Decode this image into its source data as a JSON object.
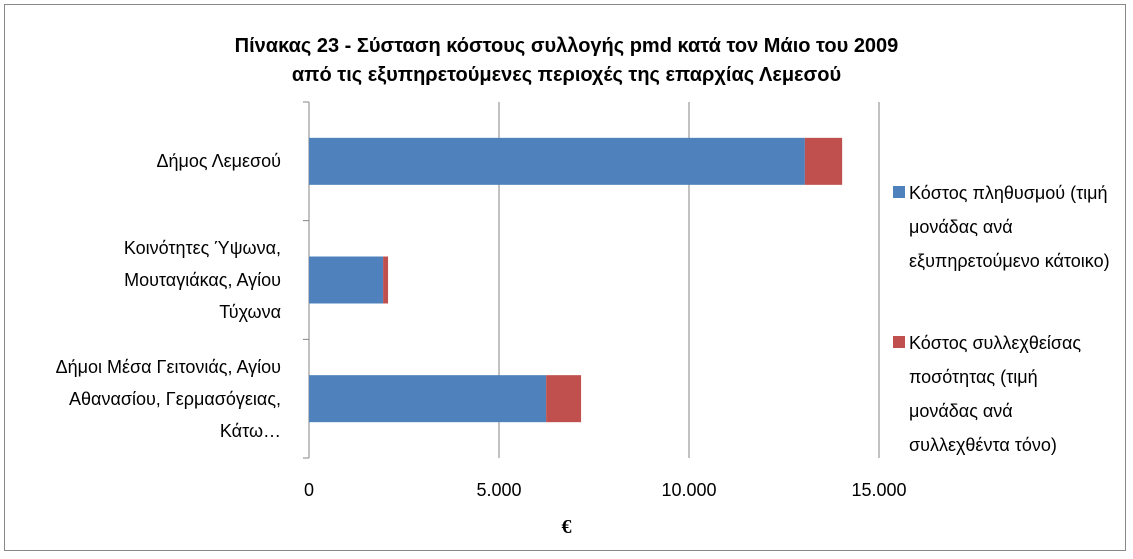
{
  "chart_data": {
    "type": "stacked-barh",
    "title": "Πίνακας 23 - Σύσταση κόστους συλλογής pmd κατά τον Μάιο του 2009\nαπό τις εξυπηρετούμενες περιοχές της επαρχίας Λεμεσού",
    "xlabel": "€",
    "categories": [
      "Δήμος Λεμεσού",
      "Κοινότητες Ύψωνα, Μουταγιάκας, Αγίου Τύχωνα",
      "Δήμοι Μέσα Γειτονιάς, Αγίου Αθανασίου, Γερμασόγειας, Κάτω…"
    ],
    "series": [
      {
        "name": "Κόστος πληθυσμού (τιμή μονάδας ανά εξυπηρετούμενο κάτοικο)",
        "color": "#4f81bd",
        "values": [
          13050,
          1950,
          6240
        ]
      },
      {
        "name": "Κόστος συλλεχθείσας ποσότητας (τιμή μονάδας ανά συλλεχθέντα τόνο)",
        "color": "#c0504d",
        "values": [
          980,
          130,
          920
        ]
      }
    ],
    "xlim": [
      0,
      15000
    ],
    "xticks": [
      0,
      {
        "value": 5000,
        "label": "5.000"
      },
      {
        "value": 10000,
        "label": "10.000"
      },
      {
        "value": 15000,
        "label": "15.000"
      }
    ],
    "grid": true,
    "legend": "right"
  }
}
